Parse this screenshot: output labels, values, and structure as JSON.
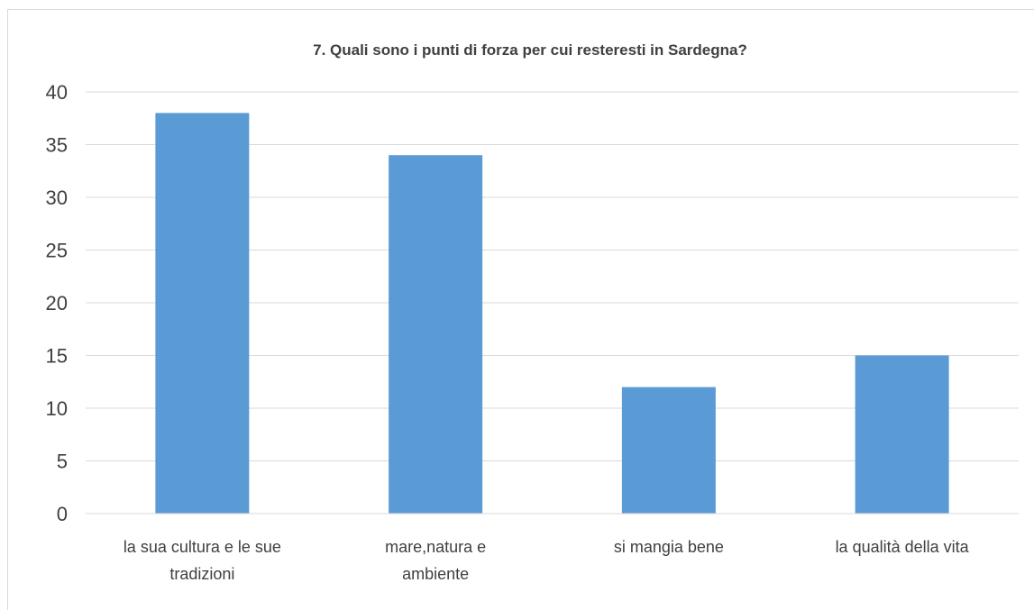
{
  "chart_data": {
    "type": "bar",
    "title": "7. Quali sono i punti di forza per cui resteresti in Sardegna?",
    "categories": [
      "la sua cultura e le sue tradizioni",
      "mare,natura e ambiente",
      "si mangia bene",
      "la qualità della vita"
    ],
    "values": [
      38,
      34,
      12,
      15
    ],
    "color": "#5b9bd5",
    "ylim": [
      0,
      40
    ],
    "yticks": [
      0,
      5,
      10,
      15,
      20,
      25,
      30,
      35,
      40
    ],
    "grid": true
  }
}
